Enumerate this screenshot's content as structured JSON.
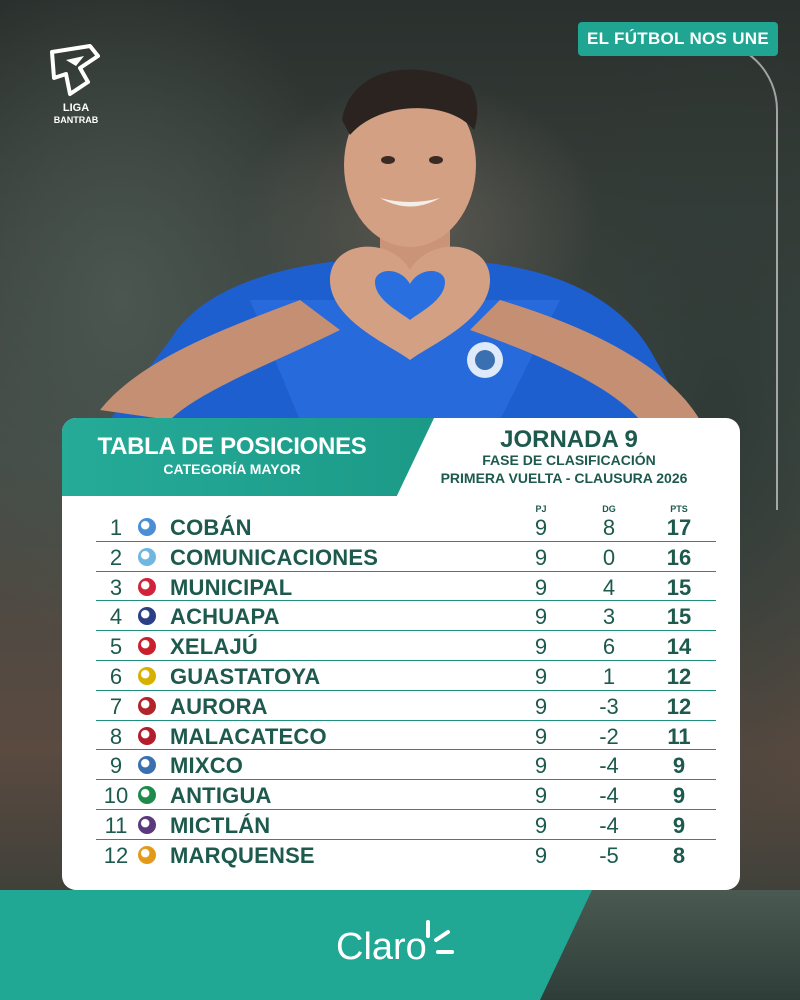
{
  "header": {
    "slogan": "EL FÚTBOL NOS UNE",
    "logo_line1": "LIGA",
    "logo_line2": "BANTRAB"
  },
  "table": {
    "title": "TABLA DE POSICIONES",
    "subtitle": "CATEGORÍA MAYOR",
    "round": "JORNADA 9",
    "phase": "FASE DE CLASIFICACIÓN",
    "tournament": "PRIMERA VUELTA - CLAUSURA 2026",
    "columns": {
      "pj": "PJ",
      "dg": "DG",
      "pts": "PTS"
    },
    "rows": [
      {
        "pos": "1",
        "team": "COBÁN",
        "pj": "9",
        "dg": "8",
        "pts": "17",
        "crest": "#4a8fd4"
      },
      {
        "pos": "2",
        "team": "COMUNICACIONES",
        "pj": "9",
        "dg": "0",
        "pts": "16",
        "crest": "#6fb6e0"
      },
      {
        "pos": "3",
        "team": "MUNICIPAL",
        "pj": "9",
        "dg": "4",
        "pts": "15",
        "crest": "#d0243a"
      },
      {
        "pos": "4",
        "team": "ACHUAPA",
        "pj": "9",
        "dg": "3",
        "pts": "15",
        "crest": "#2a3f86"
      },
      {
        "pos": "5",
        "team": "XELAJÚ",
        "pj": "9",
        "dg": "6",
        "pts": "14",
        "crest": "#c8202c"
      },
      {
        "pos": "6",
        "team": "GUASTATOYA",
        "pj": "9",
        "dg": "1",
        "pts": "12",
        "crest": "#d8b000"
      },
      {
        "pos": "7",
        "team": "AURORA",
        "pj": "9",
        "dg": "-3",
        "pts": "12",
        "crest": "#b0242a"
      },
      {
        "pos": "8",
        "team": "MALACATECO",
        "pj": "9",
        "dg": "-2",
        "pts": "11",
        "crest": "#b31d2c"
      },
      {
        "pos": "9",
        "team": "MIXCO",
        "pj": "9",
        "dg": "-4",
        "pts": "9",
        "crest": "#3a6fb0"
      },
      {
        "pos": "10",
        "team": "ANTIGUA",
        "pj": "9",
        "dg": "-4",
        "pts": "9",
        "crest": "#1f8a4c"
      },
      {
        "pos": "11",
        "team": "MICTLÁN",
        "pj": "9",
        "dg": "-4",
        "pts": "9",
        "crest": "#5a3a7a"
      },
      {
        "pos": "12",
        "team": "MARQUENSE",
        "pj": "9",
        "dg": "-5",
        "pts": "8",
        "crest": "#e39a1a"
      }
    ]
  },
  "footer": {
    "sponsor": "Claro"
  },
  "colors": {
    "accent": "#20a894",
    "text": "#1d5a4d",
    "card": "#ffffff"
  }
}
